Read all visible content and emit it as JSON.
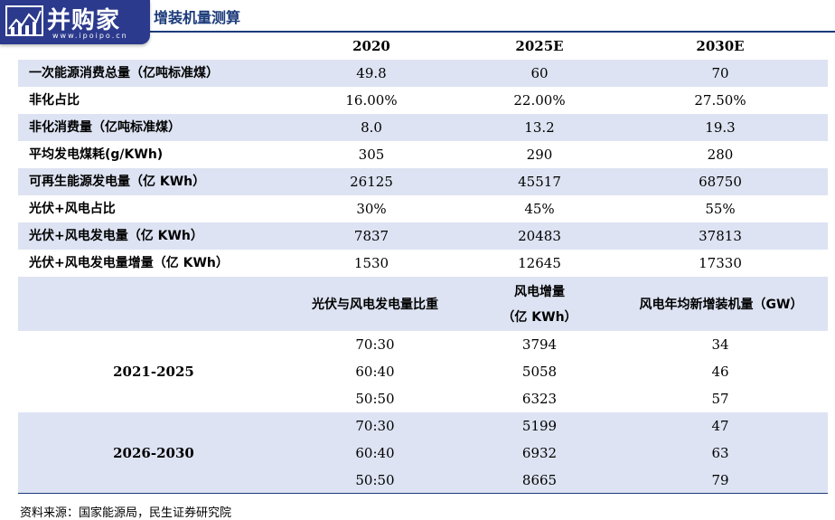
{
  "logo": {
    "text": "并购家",
    "url": "www.ipoipo.cn"
  },
  "title": "增装机量测算",
  "header": {
    "col1": "2020",
    "col2": "2025E",
    "col3": "2030E"
  },
  "rows": [
    {
      "label": "一次能源消费总量（亿吨标准煤）",
      "v2020": "49.8",
      "v2025": "60",
      "v2030": "70"
    },
    {
      "label": "非化占比",
      "v2020": "16.00%",
      "v2025": "22.00%",
      "v2030": "27.50%"
    },
    {
      "label": "非化消费量（亿吨标准煤）",
      "v2020": "8.0",
      "v2025": "13.2",
      "v2030": "19.3"
    },
    {
      "label": "平均发电煤耗(g/KWh)",
      "v2020": "305",
      "v2025": "290",
      "v2030": "280"
    },
    {
      "label": "可再生能源发电量（亿 KWh）",
      "v2020": "26125",
      "v2025": "45517",
      "v2030": "68750"
    },
    {
      "label": "光伏+风电占比",
      "v2020": "30%",
      "v2025": "45%",
      "v2030": "55%"
    },
    {
      "label": "光伏+风电发电量（亿 KWh）",
      "v2020": "7837",
      "v2025": "20483",
      "v2030": "37813"
    },
    {
      "label": "光伏+风电发电量增量（亿 KWh）",
      "v2020": "1530",
      "v2025": "12645",
      "v2030": "17330"
    }
  ],
  "section2": {
    "h_ratio": "光伏与风电发电量比重",
    "h_increment_line1": "风电增量",
    "h_increment_line2": "（亿 KWh）",
    "h_capacity": "风电年均新增装机量（GW）",
    "groups": [
      {
        "period": "2021-2025",
        "rows": [
          {
            "ratio": "70:30",
            "increment": "3794",
            "capacity": "34"
          },
          {
            "ratio": "60:40",
            "increment": "5058",
            "capacity": "46"
          },
          {
            "ratio": "50:50",
            "increment": "6323",
            "capacity": "57"
          }
        ]
      },
      {
        "period": "2026-2030",
        "rows": [
          {
            "ratio": "70:30",
            "increment": "5199",
            "capacity": "47"
          },
          {
            "ratio": "60:40",
            "increment": "6932",
            "capacity": "63"
          },
          {
            "ratio": "50:50",
            "increment": "8665",
            "capacity": "79"
          }
        ]
      }
    ]
  },
  "source": "资料来源：国家能源局，民生证券研究院"
}
